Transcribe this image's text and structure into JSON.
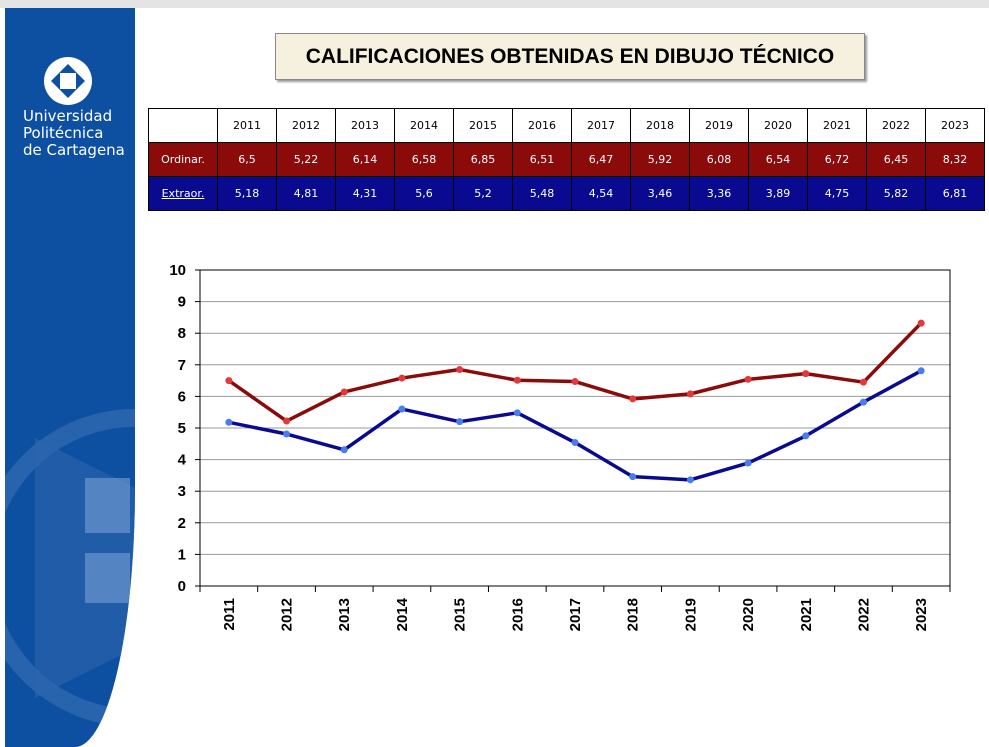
{
  "header": {
    "university": [
      "Universidad",
      "Politécnica",
      "de Cartagena"
    ],
    "title": "CALIFICACIONES OBTENIDAS EN DIBUJO TÉCNICO"
  },
  "table": {
    "columns": [
      "2011",
      "2012",
      "2013",
      "2014",
      "2015",
      "2016",
      "2017",
      "2018",
      "2019",
      "2020",
      "2021",
      "2022",
      "2023"
    ],
    "rows": [
      {
        "label": "Ordinar.",
        "values": [
          "6,5",
          "5,22",
          "6,14",
          "6,58",
          "6,85",
          "6,51",
          "6,47",
          "5,92",
          "6,08",
          "6,54",
          "6,72",
          "6,45",
          "8,32"
        ]
      },
      {
        "label": "Extraor.",
        "values": [
          "5,18",
          "4,81",
          "4,31",
          "5,6",
          "5,2",
          "5,48",
          "4,54",
          "3,46",
          "3,36",
          "3,89",
          "4,75",
          "5,82",
          "6,81"
        ]
      }
    ]
  },
  "chart_data": {
    "type": "line",
    "categories": [
      "2011",
      "2012",
      "2013",
      "2014",
      "2015",
      "2016",
      "2017",
      "2018",
      "2019",
      "2020",
      "2021",
      "2022",
      "2023"
    ],
    "series": [
      {
        "color": "#8b0a0a",
        "marker_color": "#e23a3a",
        "values": [
          6.5,
          5.22,
          6.14,
          6.58,
          6.85,
          6.51,
          6.47,
          5.92,
          6.08,
          6.54,
          6.72,
          6.45,
          8.32
        ]
      },
      {
        "color": "#0a0a90",
        "marker_color": "#4a7cf0",
        "values": [
          5.18,
          4.81,
          4.31,
          5.6,
          5.2,
          5.48,
          4.54,
          3.46,
          3.36,
          3.89,
          4.75,
          5.82,
          6.81
        ]
      }
    ],
    "ylim": [
      0,
      10
    ],
    "yticks": [
      0,
      1,
      2,
      3,
      4,
      5,
      6,
      7,
      8,
      9,
      10
    ],
    "grid": true
  }
}
